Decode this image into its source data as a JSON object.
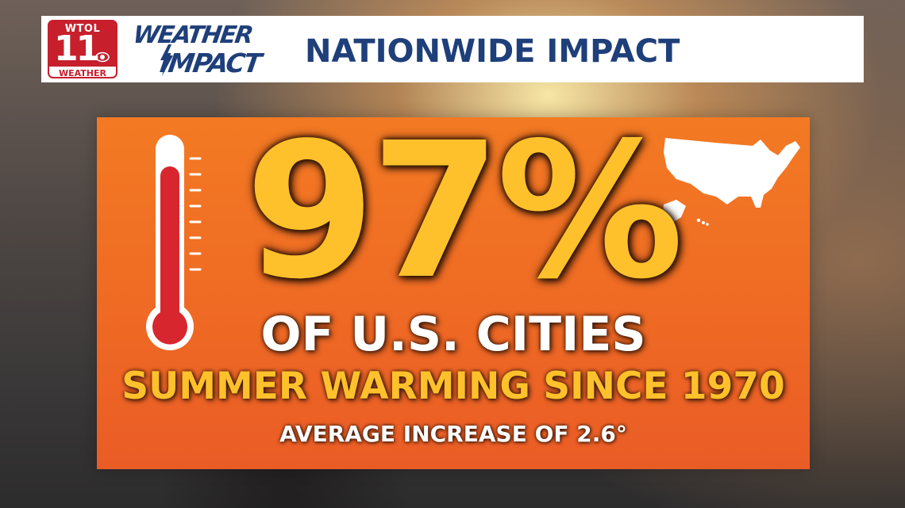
{
  "header": {
    "logo": {
      "station": "WTOL",
      "channel": "11",
      "label": "WEATHER",
      "icon": "cbs-eye-icon",
      "color": "#c71f2c"
    },
    "brand": {
      "line1": "WEATHER",
      "line2": "IMPACT",
      "icon": "lightning-bolt-icon",
      "color": "#1e3f7a"
    },
    "title": "NATIONWIDE IMPACT"
  },
  "panel": {
    "headline_value": "97%",
    "line_cities": "OF U.S. CITIES",
    "line_warming": "SUMMER WARMING SINCE 1970",
    "line_average": "AVERAGE INCREASE OF 2.6°",
    "thermometer_icon": "thermometer-icon",
    "map_icon": "us-map-icon",
    "colors": {
      "panel_orange": "#f37a23",
      "highlight_yellow": "#ffc12b",
      "mercury_red": "#d8262f"
    }
  }
}
